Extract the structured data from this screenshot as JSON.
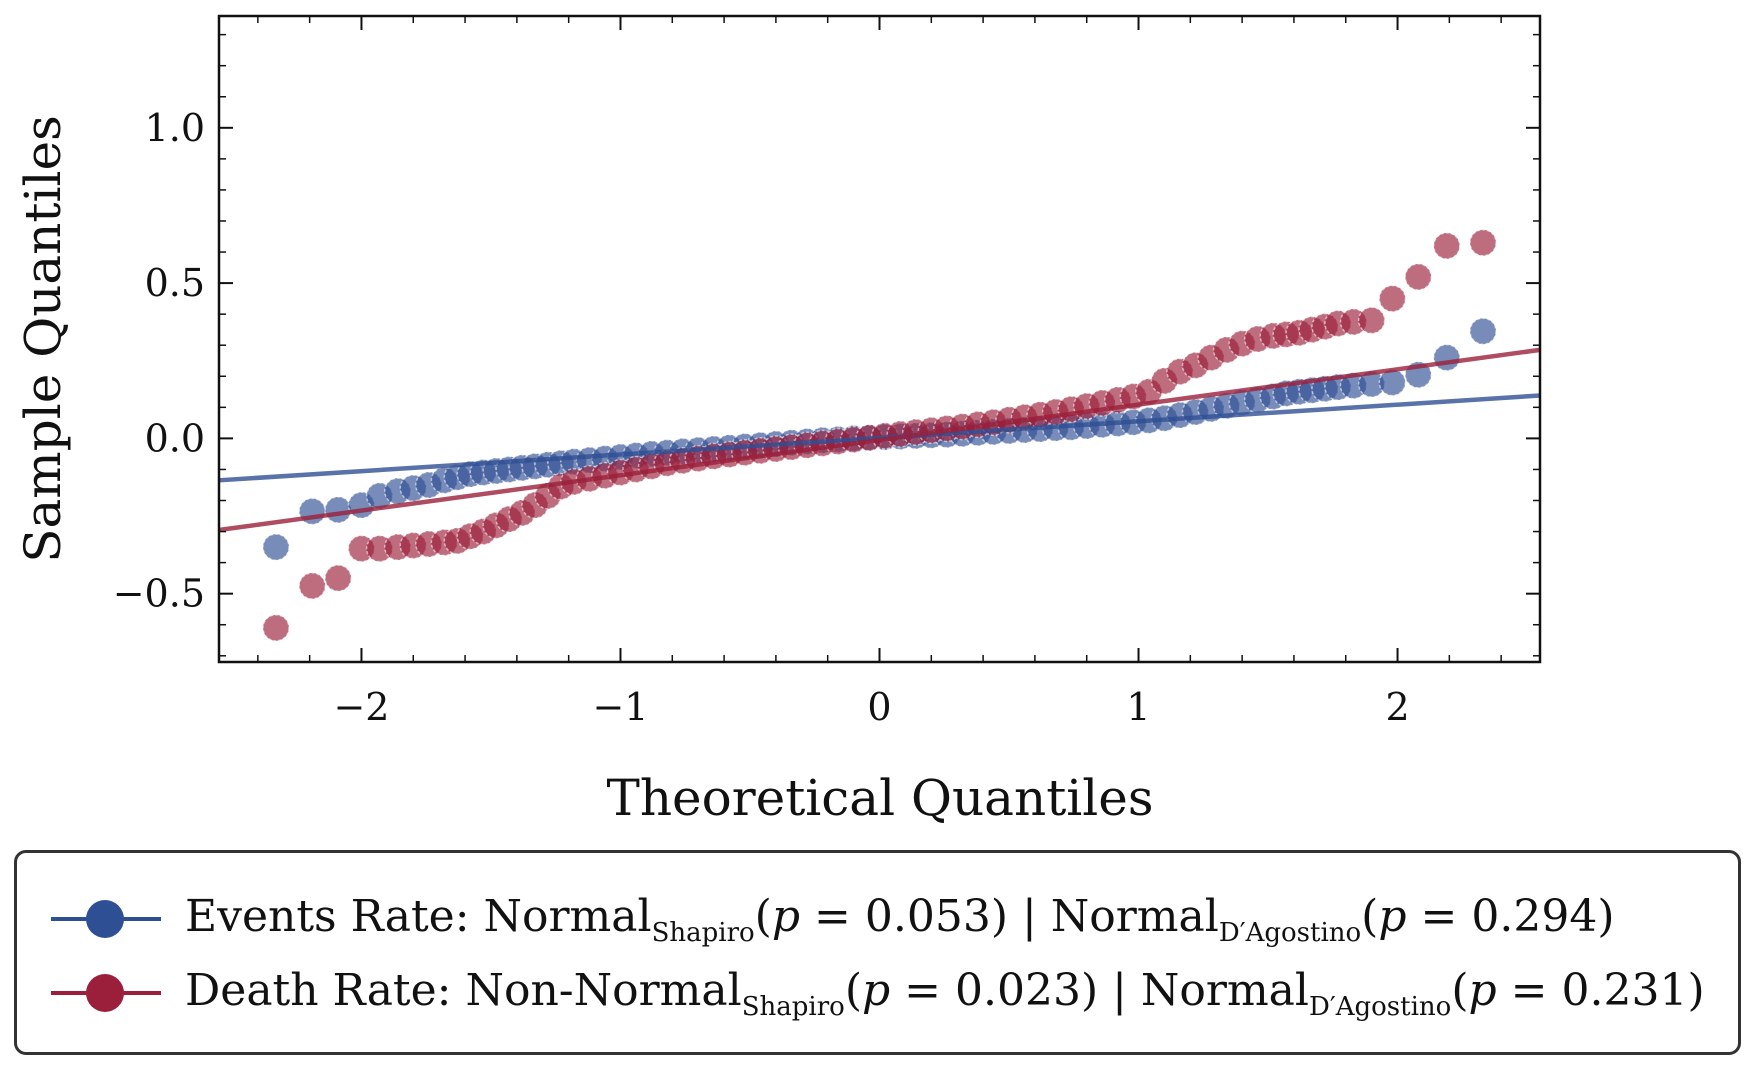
{
  "chart_data": {
    "type": "scatter",
    "title": "",
    "xlabel": "Theoretical Quantiles",
    "ylabel": "Sample Quantiles",
    "xlim": [
      -2.55,
      2.55
    ],
    "ylim": [
      -0.72,
      1.36
    ],
    "x_ticks": [
      -2,
      -1,
      0,
      1,
      2
    ],
    "x_tick_labels": [
      "−2",
      "−1",
      "0",
      "1",
      "2"
    ],
    "y_ticks": [
      -0.5,
      0.0,
      0.5,
      1.0
    ],
    "y_tick_labels": [
      "−0.5",
      "0.0",
      "0.5",
      "1.0"
    ],
    "grid": false,
    "legend_placement": "below",
    "series": [
      {
        "name": "Events Rate",
        "color": "#2f4f94",
        "fit_line": [
          [
            -2.55,
            -0.135
          ],
          [
            2.55,
            0.138
          ]
        ],
        "points": [
          [
            -2.33,
            -0.35
          ],
          [
            -2.19,
            -0.235
          ],
          [
            -2.09,
            -0.23
          ],
          [
            -2.0,
            -0.215
          ],
          [
            -1.93,
            -0.185
          ],
          [
            -1.86,
            -0.17
          ],
          [
            -1.8,
            -0.16
          ],
          [
            -1.74,
            -0.15
          ],
          [
            -1.68,
            -0.135
          ],
          [
            -1.63,
            -0.125
          ],
          [
            -1.58,
            -0.115
          ],
          [
            -1.53,
            -0.11
          ],
          [
            -1.48,
            -0.105
          ],
          [
            -1.43,
            -0.1
          ],
          [
            -1.38,
            -0.095
          ],
          [
            -1.33,
            -0.09
          ],
          [
            -1.28,
            -0.085
          ],
          [
            -1.23,
            -0.08
          ],
          [
            -1.18,
            -0.075
          ],
          [
            -1.12,
            -0.07
          ],
          [
            -1.06,
            -0.065
          ],
          [
            -1.0,
            -0.06
          ],
          [
            -0.94,
            -0.055
          ],
          [
            -0.88,
            -0.05
          ],
          [
            -0.82,
            -0.046
          ],
          [
            -0.76,
            -0.042
          ],
          [
            -0.7,
            -0.038
          ],
          [
            -0.64,
            -0.034
          ],
          [
            -0.58,
            -0.03
          ],
          [
            -0.52,
            -0.026
          ],
          [
            -0.46,
            -0.022
          ],
          [
            -0.4,
            -0.018
          ],
          [
            -0.34,
            -0.014
          ],
          [
            -0.28,
            -0.01
          ],
          [
            -0.22,
            -0.006
          ],
          [
            -0.16,
            -0.003
          ],
          [
            -0.1,
            0.0
          ],
          [
            -0.04,
            0.002
          ],
          [
            0.02,
            0.004
          ],
          [
            0.08,
            0.006
          ],
          [
            0.14,
            0.008
          ],
          [
            0.2,
            0.01
          ],
          [
            0.26,
            0.012
          ],
          [
            0.32,
            0.015
          ],
          [
            0.38,
            0.018
          ],
          [
            0.44,
            0.021
          ],
          [
            0.5,
            0.024
          ],
          [
            0.56,
            0.027
          ],
          [
            0.62,
            0.03
          ],
          [
            0.68,
            0.033
          ],
          [
            0.74,
            0.036
          ],
          [
            0.8,
            0.04
          ],
          [
            0.86,
            0.044
          ],
          [
            0.92,
            0.048
          ],
          [
            0.98,
            0.052
          ],
          [
            1.04,
            0.058
          ],
          [
            1.1,
            0.065
          ],
          [
            1.16,
            0.075
          ],
          [
            1.22,
            0.085
          ],
          [
            1.28,
            0.095
          ],
          [
            1.34,
            0.105
          ],
          [
            1.4,
            0.115
          ],
          [
            1.46,
            0.125
          ],
          [
            1.52,
            0.135
          ],
          [
            1.57,
            0.145
          ],
          [
            1.62,
            0.15
          ],
          [
            1.67,
            0.155
          ],
          [
            1.72,
            0.16
          ],
          [
            1.77,
            0.165
          ],
          [
            1.83,
            0.17
          ],
          [
            1.9,
            0.175
          ],
          [
            1.98,
            0.18
          ],
          [
            2.08,
            0.205
          ],
          [
            2.19,
            0.26
          ],
          [
            2.33,
            0.345
          ]
        ]
      },
      {
        "name": "Death Rate",
        "color": "#9b1f3a",
        "fit_line": [
          [
            -2.55,
            -0.295
          ],
          [
            2.55,
            0.285
          ]
        ],
        "points": [
          [
            -2.33,
            -0.61
          ],
          [
            -2.19,
            -0.475
          ],
          [
            -2.09,
            -0.45
          ],
          [
            -2.0,
            -0.355
          ],
          [
            -1.93,
            -0.355
          ],
          [
            -1.86,
            -0.35
          ],
          [
            -1.8,
            -0.345
          ],
          [
            -1.74,
            -0.34
          ],
          [
            -1.68,
            -0.335
          ],
          [
            -1.63,
            -0.33
          ],
          [
            -1.58,
            -0.315
          ],
          [
            -1.53,
            -0.3
          ],
          [
            -1.48,
            -0.28
          ],
          [
            -1.43,
            -0.26
          ],
          [
            -1.38,
            -0.24
          ],
          [
            -1.33,
            -0.215
          ],
          [
            -1.28,
            -0.185
          ],
          [
            -1.23,
            -0.155
          ],
          [
            -1.18,
            -0.14
          ],
          [
            -1.12,
            -0.13
          ],
          [
            -1.06,
            -0.12
          ],
          [
            -1.0,
            -0.11
          ],
          [
            -0.94,
            -0.1
          ],
          [
            -0.88,
            -0.09
          ],
          [
            -0.82,
            -0.08
          ],
          [
            -0.76,
            -0.072
          ],
          [
            -0.7,
            -0.065
          ],
          [
            -0.64,
            -0.058
          ],
          [
            -0.58,
            -0.052
          ],
          [
            -0.52,
            -0.046
          ],
          [
            -0.46,
            -0.04
          ],
          [
            -0.4,
            -0.034
          ],
          [
            -0.34,
            -0.028
          ],
          [
            -0.28,
            -0.022
          ],
          [
            -0.22,
            -0.016
          ],
          [
            -0.16,
            -0.01
          ],
          [
            -0.1,
            -0.004
          ],
          [
            -0.04,
            0.002
          ],
          [
            0.02,
            0.008
          ],
          [
            0.08,
            0.014
          ],
          [
            0.14,
            0.02
          ],
          [
            0.2,
            0.026
          ],
          [
            0.26,
            0.032
          ],
          [
            0.32,
            0.038
          ],
          [
            0.38,
            0.045
          ],
          [
            0.44,
            0.052
          ],
          [
            0.5,
            0.06
          ],
          [
            0.56,
            0.068
          ],
          [
            0.62,
            0.076
          ],
          [
            0.68,
            0.085
          ],
          [
            0.74,
            0.094
          ],
          [
            0.8,
            0.104
          ],
          [
            0.86,
            0.114
          ],
          [
            0.92,
            0.124
          ],
          [
            0.98,
            0.135
          ],
          [
            1.04,
            0.15
          ],
          [
            1.1,
            0.185
          ],
          [
            1.16,
            0.215
          ],
          [
            1.22,
            0.235
          ],
          [
            1.28,
            0.26
          ],
          [
            1.34,
            0.285
          ],
          [
            1.4,
            0.305
          ],
          [
            1.46,
            0.32
          ],
          [
            1.52,
            0.33
          ],
          [
            1.57,
            0.335
          ],
          [
            1.62,
            0.34
          ],
          [
            1.67,
            0.35
          ],
          [
            1.72,
            0.36
          ],
          [
            1.77,
            0.37
          ],
          [
            1.83,
            0.375
          ],
          [
            1.9,
            0.38
          ],
          [
            1.98,
            0.45
          ],
          [
            2.08,
            0.52
          ],
          [
            2.19,
            0.62
          ],
          [
            2.33,
            0.63
          ]
        ]
      }
    ]
  },
  "legend": {
    "events": {
      "prefix": "Events Rate:  Normal",
      "sub1": "Shapiro",
      "mid1": "(",
      "p_symbol": "p",
      "mid2": " = 0.053)  |  Normal",
      "sub2": "D′Agostino",
      "end": " = 0.294)"
    },
    "death": {
      "prefix": "Death Rate:  Non-Normal",
      "sub1": "Shapiro",
      "mid1": "(",
      "p_symbol": "p",
      "mid2": " = 0.023)  |  Normal",
      "sub2": "D′Agostino",
      "end": " = 0.231)"
    }
  }
}
